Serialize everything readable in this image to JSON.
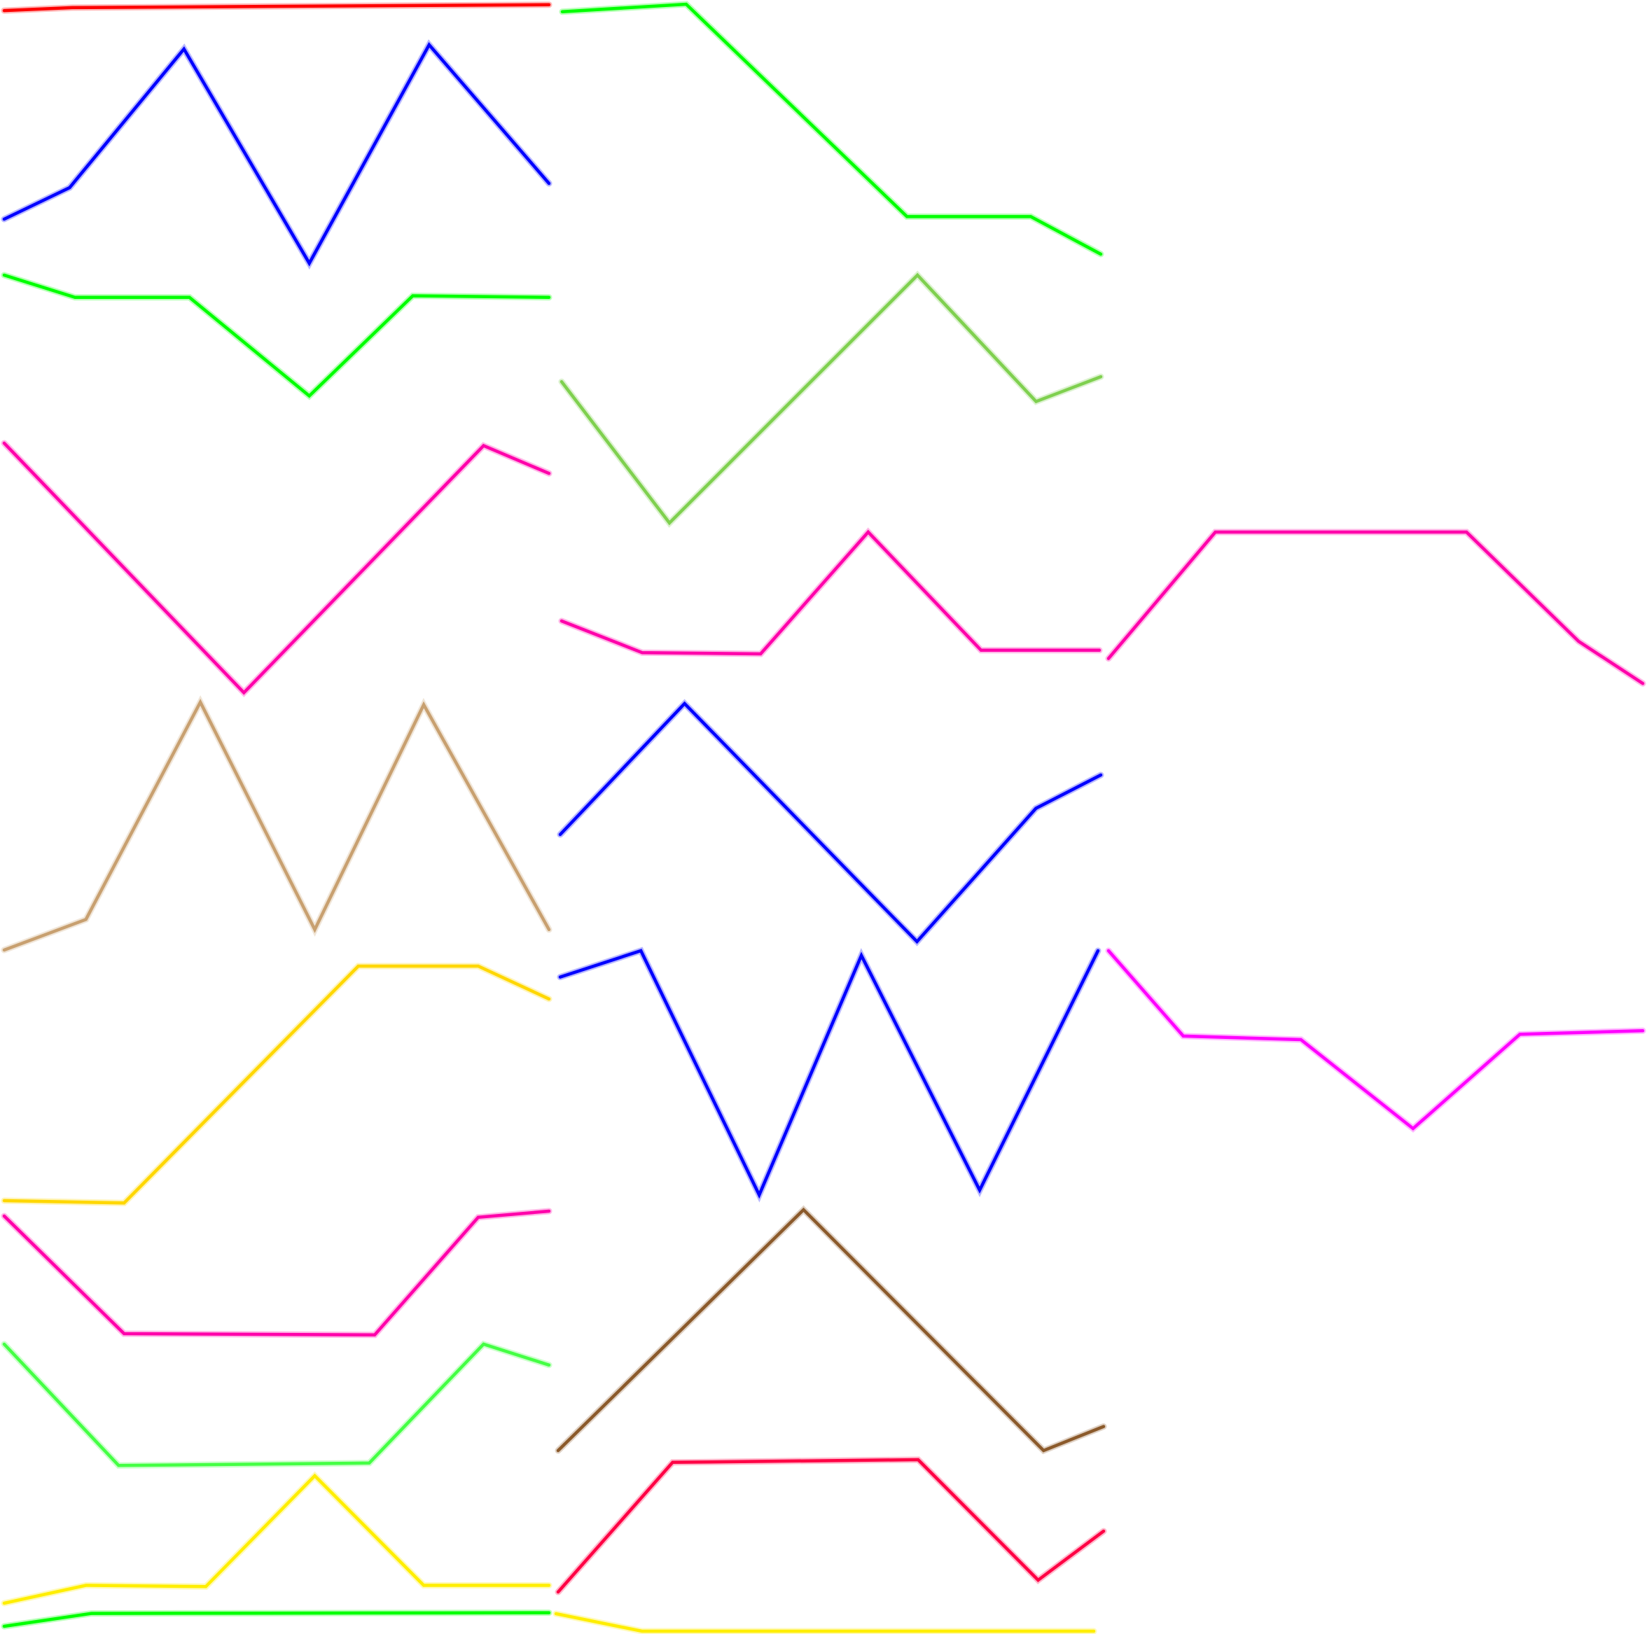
{
  "chart_data": {
    "type": "line",
    "title": "",
    "xlabel": "",
    "ylabel": "",
    "grid": false,
    "legend": "none",
    "sparklines": [
      {
        "id": "c1r1",
        "color": "#ff0000",
        "points": [
          [
            0.0,
            0.65
          ],
          [
            0.125,
            0.35
          ],
          [
            1.0,
            0.05
          ]
        ]
      },
      {
        "id": "c1r2",
        "color": "#0000ff",
        "points": [
          [
            0.0,
            0.91
          ],
          [
            0.12,
            0.76
          ],
          [
            0.33,
            0.1
          ],
          [
            0.56,
            1.12
          ],
          [
            0.78,
            0.08
          ],
          [
            1.0,
            0.74
          ]
        ]
      },
      {
        "id": "c1r3",
        "color": "#00ff00",
        "points": [
          [
            0.0,
            0.0
          ],
          [
            0.13,
            0.14
          ],
          [
            0.34,
            0.14
          ],
          [
            0.56,
            0.76
          ],
          [
            0.75,
            0.13
          ],
          [
            1.0,
            0.14
          ]
        ]
      },
      {
        "id": "c1r4",
        "color": "#ff00aa",
        "points": [
          [
            0.0,
            0.0
          ],
          [
            0.44,
            0.99
          ],
          [
            0.88,
            0.01
          ],
          [
            1.0,
            0.12
          ]
        ]
      },
      {
        "id": "c1r5",
        "color": "#c8a070",
        "points": [
          [
            0.0,
            0.97
          ],
          [
            0.15,
            0.85
          ],
          [
            0.36,
            0.0
          ],
          [
            0.57,
            0.89
          ],
          [
            0.77,
            0.01
          ],
          [
            1.0,
            0.89
          ]
        ]
      },
      {
        "id": "c1r6",
        "color": "#ffd700",
        "points": [
          [
            0.0,
            1.0
          ],
          [
            0.22,
            1.01
          ],
          [
            0.65,
            0.0
          ],
          [
            0.87,
            0.0
          ],
          [
            1.0,
            0.14
          ]
        ]
      },
      {
        "id": "c1r7",
        "color": "#ff00aa",
        "points": [
          [
            0.0,
            0.04
          ],
          [
            0.22,
            1.0
          ],
          [
            0.68,
            1.01
          ],
          [
            0.87,
            0.05
          ],
          [
            1.0,
            0.0
          ]
        ]
      },
      {
        "id": "c1r8",
        "color": "#44ff44",
        "points": [
          [
            0.0,
            0.0
          ],
          [
            0.21,
            0.99
          ],
          [
            0.67,
            0.97
          ],
          [
            0.88,
            0.0
          ],
          [
            1.0,
            0.17
          ]
        ]
      },
      {
        "id": "c1r9",
        "color": "#ffee00",
        "points": [
          [
            0.0,
            1.0
          ],
          [
            0.15,
            0.86
          ],
          [
            0.37,
            0.87
          ],
          [
            0.57,
            0.0
          ],
          [
            0.77,
            0.86
          ],
          [
            1.0,
            0.86
          ]
        ]
      },
      {
        "id": "c1r10",
        "color": "#00ff00",
        "points": [
          [
            0.0,
            1.0
          ],
          [
            0.16,
            0.08
          ],
          [
            1.0,
            0.03
          ]
        ]
      },
      {
        "id": "c2r1",
        "color": "#00ff00",
        "points": [
          [
            0.0,
            0.03
          ],
          [
            0.23,
            0.0
          ],
          [
            0.64,
            0.85
          ],
          [
            0.87,
            0.85
          ],
          [
            1.0,
            1.0
          ]
        ]
      },
      {
        "id": "c2r2",
        "color": "#7fd04f",
        "points": [
          [
            0.0,
            0.43
          ],
          [
            0.2,
            1.0
          ],
          [
            0.66,
            0.0
          ],
          [
            0.88,
            0.51
          ],
          [
            1.0,
            0.41
          ]
        ]
      },
      {
        "id": "c2r3",
        "color": "#ff00aa",
        "points": [
          [
            0.0,
            0.73
          ],
          [
            0.15,
            0.99
          ],
          [
            0.37,
            1.0
          ],
          [
            0.57,
            0.0
          ],
          [
            0.78,
            0.97
          ],
          [
            1.0,
            0.97
          ]
        ]
      },
      {
        "id": "c2r4",
        "color": "#0000ff",
        "points": [
          [
            0.0,
            0.55
          ],
          [
            0.23,
            0.0
          ],
          [
            0.66,
            1.0
          ],
          [
            0.88,
            0.44
          ],
          [
            1.0,
            0.3
          ]
        ]
      },
      {
        "id": "c2r5",
        "color": "#0000ff",
        "points": [
          [
            0.0,
            0.11
          ],
          [
            0.15,
            0.0
          ],
          [
            0.37,
            1.02
          ],
          [
            0.56,
            0.02
          ],
          [
            0.78,
            1.0
          ],
          [
            1.0,
            0.0
          ]
        ]
      },
      {
        "id": "c2r6",
        "color": "#8b5a2b",
        "points": [
          [
            0.0,
            1.0
          ],
          [
            0.45,
            0.0
          ],
          [
            0.89,
            1.0
          ],
          [
            1.0,
            0.9
          ]
        ]
      },
      {
        "id": "c2r7",
        "color": "#ff0044",
        "points": [
          [
            0.0,
            1.0
          ],
          [
            0.21,
            0.02
          ],
          [
            0.66,
            0.0
          ],
          [
            0.88,
            0.91
          ],
          [
            1.0,
            0.54
          ]
        ]
      },
      {
        "id": "c2r8",
        "color": "#ffee00",
        "points": [
          [
            0.0,
            0.0
          ],
          [
            0.16,
            1.0
          ],
          [
            1.0,
            1.0
          ]
        ]
      },
      {
        "id": "c3r4",
        "color": "#ff00aa",
        "points": [
          [
            0.0,
            0.81
          ],
          [
            0.2,
            0.0
          ],
          [
            0.67,
            0.0
          ],
          [
            0.88,
            0.7
          ],
          [
            1.0,
            0.97
          ]
        ]
      },
      {
        "id": "c3r5",
        "color": "#ff00ff",
        "points": [
          [
            0.0,
            0.0
          ],
          [
            0.14,
            0.48
          ],
          [
            0.36,
            0.5
          ],
          [
            0.57,
            1.0
          ],
          [
            0.77,
            0.47
          ],
          [
            1.0,
            0.45
          ]
        ]
      }
    ]
  }
}
